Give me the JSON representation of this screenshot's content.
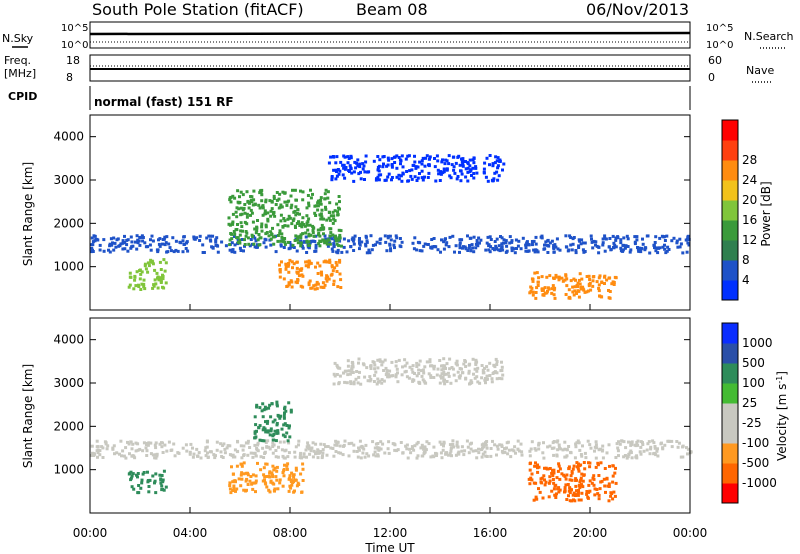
{
  "header": {
    "title": "South Pole Station (fitACF)",
    "beam": "Beam 08",
    "date": "06/Nov/2013"
  },
  "top_panels": {
    "nsky_label": "N.Sky",
    "nsearch_label": "N.Search",
    "noise_ticks": [
      "10^5",
      "10^0"
    ],
    "freq_label_1": "Freq.",
    "freq_label_2": "[MHz]",
    "freq_ticks": [
      "18",
      "8"
    ],
    "nave_label": "Nave",
    "nave_ticks": [
      "60",
      "0"
    ],
    "cpid_label": "CPID",
    "cpid_text": "normal (fast) 151 RF"
  },
  "xaxis": {
    "label": "Time UT",
    "ticks": [
      "00:00",
      "04:00",
      "08:00",
      "12:00",
      "16:00",
      "20:00",
      "00:00"
    ]
  },
  "colors": {
    "power": [
      "#0030ff",
      "#1e52c8",
      "#2f7f4f",
      "#3a9a3a",
      "#80c53a",
      "#f2c21b",
      "#ff8c10",
      "#ff4010",
      "#ff0000"
    ],
    "velocity": [
      "#ff0000",
      "#ff6600",
      "#ff9920",
      "#c8c8c0",
      "#c8c8c0",
      "#44bb33",
      "#2e8c5a",
      "#2a4fa8",
      "#0a2dff"
    ]
  },
  "chart_data": [
    {
      "type": "heatmap",
      "name": "power",
      "ylabel": "Slant Range [km]",
      "yticks": [
        "1000",
        "2000",
        "3000",
        "4000"
      ],
      "ylim": [
        0,
        4500
      ],
      "colorbar_label": "Power [dB]",
      "colorbar_ticks": [
        "4",
        "8",
        "12",
        "16",
        "20",
        "24",
        "28"
      ],
      "features": [
        {
          "t": [
            0,
            24
          ],
          "range": [
            1350,
            1750
          ],
          "value_db": 8
        },
        {
          "t": [
            5.5,
            10
          ],
          "range": [
            1500,
            2800
          ],
          "value_db": 16
        },
        {
          "t": [
            7.5,
            10
          ],
          "range": [
            500,
            1200
          ],
          "value_db": 28
        },
        {
          "t": [
            17.5,
            21
          ],
          "range": [
            300,
            900
          ],
          "value_db": 28
        },
        {
          "t": [
            1.5,
            3
          ],
          "range": [
            500,
            1200
          ],
          "value_db": 20
        },
        {
          "t": [
            9.5,
            16.5
          ],
          "range": [
            3000,
            3600
          ],
          "value_db": 4
        }
      ]
    },
    {
      "type": "heatmap",
      "name": "velocity",
      "ylabel": "Slant Range [km]",
      "yticks": [
        "1000",
        "2000",
        "3000",
        "4000"
      ],
      "ylim": [
        0,
        4500
      ],
      "colorbar_label": "Velocity [m s^-1]",
      "colorbar_ticks": [
        "1000",
        "500",
        "100",
        "25",
        "-25",
        "-100",
        "-500",
        "-1000"
      ],
      "features": [
        {
          "t": [
            0,
            24
          ],
          "range": [
            1300,
            1700
          ],
          "value_ms": 0
        },
        {
          "t": [
            5.5,
            8.5
          ],
          "range": [
            500,
            1200
          ],
          "value_ms": -300
        },
        {
          "t": [
            6.5,
            8
          ],
          "range": [
            1700,
            2600
          ],
          "value_ms": 300
        },
        {
          "t": [
            17.5,
            21
          ],
          "range": [
            300,
            1200
          ],
          "value_ms": -500
        },
        {
          "t": [
            1.5,
            3
          ],
          "range": [
            500,
            1000
          ],
          "value_ms": 200
        },
        {
          "t": [
            9.5,
            16.5
          ],
          "range": [
            3000,
            3600
          ],
          "value_ms": 0
        }
      ]
    }
  ]
}
